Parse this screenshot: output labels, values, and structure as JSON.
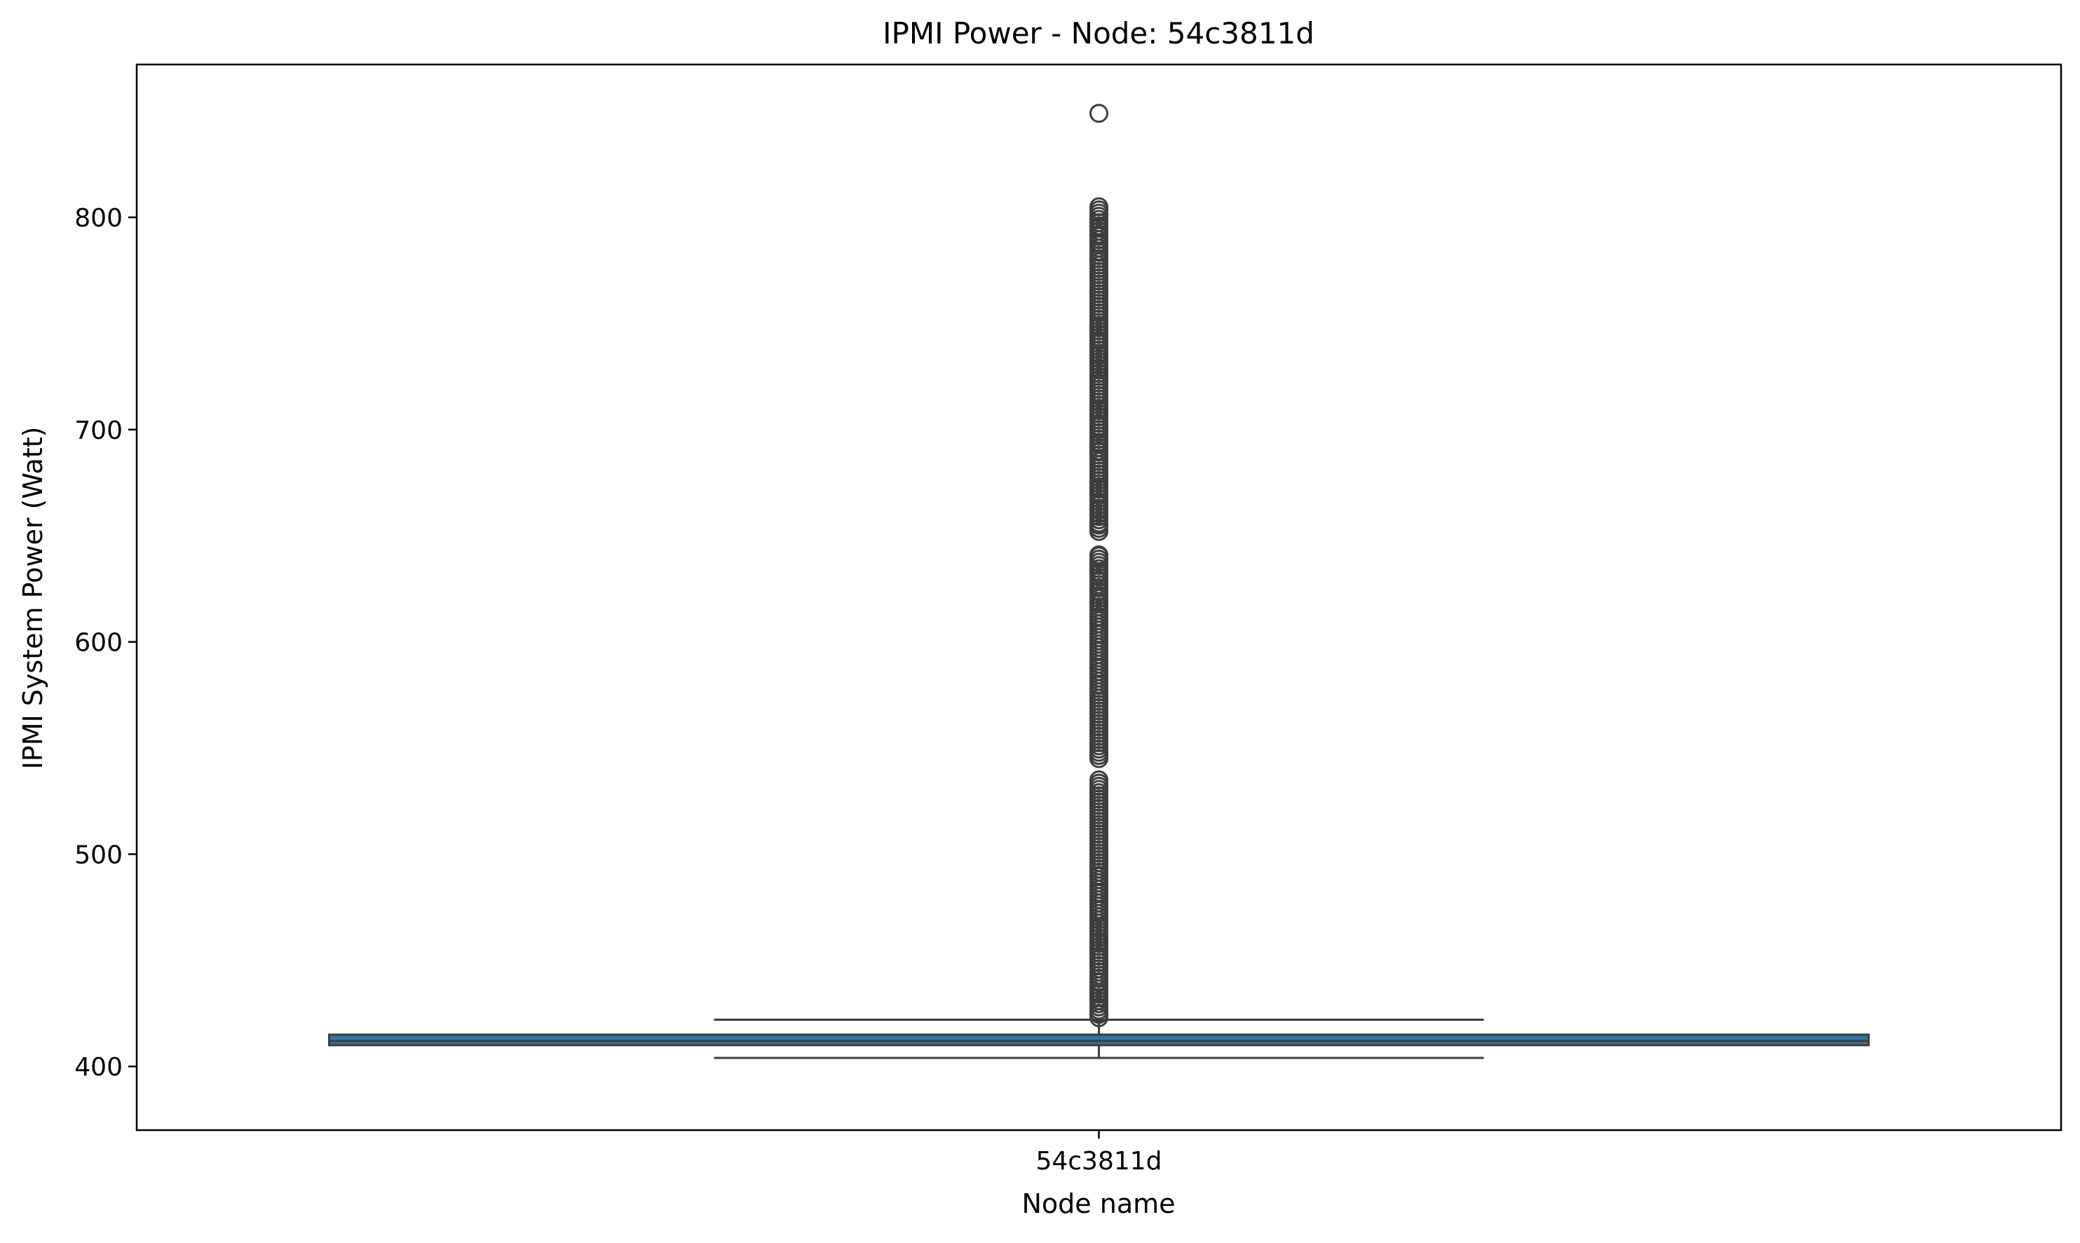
{
  "chart_data": {
    "type": "box",
    "title": "IPMI Power - Node: 54c3811d",
    "xlabel": "Node name",
    "ylabel": "IPMI System Power (Watt)",
    "categories": [
      "54c3811d"
    ],
    "ylim": [
      370,
      872
    ],
    "yticks": [
      400,
      500,
      600,
      700,
      800
    ],
    "grid": false,
    "box_color": "#3274a1",
    "edge_color": "#3d3d3d",
    "boxes": [
      {
        "category": "54c3811d",
        "whisker_low": 404,
        "q1": 410,
        "median": 412,
        "q3": 415,
        "whisker_high": 422,
        "outliers": [
          423,
          425,
          428,
          431,
          435,
          440,
          446,
          452,
          459,
          466,
          474,
          482,
          490,
          499,
          508,
          517,
          526,
          535,
          545,
          554,
          563,
          572,
          580,
          588,
          596,
          604,
          612,
          619,
          624,
          629,
          633,
          636,
          641,
          652,
          656,
          663,
          666,
          673,
          679,
          682,
          690,
          694,
          697,
          703,
          710,
          716,
          722,
          729,
          736,
          742,
          749,
          755,
          761,
          767,
          773,
          779,
          784,
          788,
          792,
          796,
          799,
          802,
          805,
          849
        ]
      }
    ]
  }
}
